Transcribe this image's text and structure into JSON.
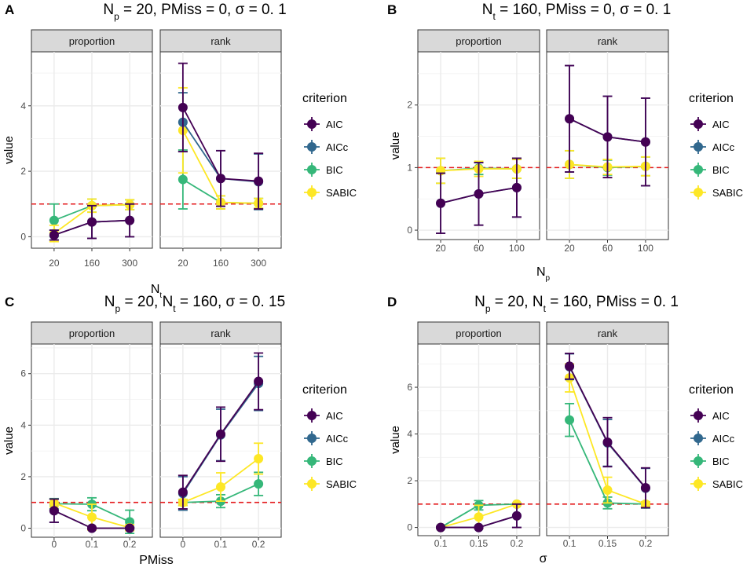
{
  "colors": {
    "AIC": "#440154",
    "AICc": "#31688E",
    "BIC": "#35B779",
    "SABIC": "#FDE725",
    "reference_line": "#E41A1C",
    "panel_background": "#FFFFFF",
    "strip_background": "#D9D9D9",
    "grid": "#EBEBEB"
  },
  "legend": {
    "title": "criterion",
    "items": [
      "AIC",
      "AICc",
      "BIC",
      "SABIC"
    ]
  },
  "chart_data": [
    {
      "panel_letter": "A",
      "type": "line",
      "title": "N_p = 20, PMiss = 0, σ = 0.1",
      "title_parts": [
        {
          "t": "N"
        },
        {
          "t": "p",
          "sub": true
        },
        {
          "t": " = 20, PMiss = 0, σ = 0. 1"
        }
      ],
      "xlabel_parts": [
        {
          "t": "N"
        },
        {
          "t": "t",
          "sub": true
        }
      ],
      "ylabel": "value",
      "ylim": [
        -0.35,
        5.65
      ],
      "yticks": [
        0,
        2,
        4
      ],
      "ytick_labels": [
        "0",
        "2",
        "4"
      ],
      "categories": [
        "20",
        "160",
        "300"
      ],
      "reference_line_y": 1,
      "facets": [
        {
          "label": "proportion",
          "series": [
            {
              "name": "AIC",
              "values": [
                0.05,
                0.45,
                0.5
              ],
              "err": [
                0.15,
                0.5,
                0.5
              ]
            },
            {
              "name": "AICc",
              "values": [
                0.05,
                0.45,
                0.5
              ],
              "err": [
                0.15,
                0.5,
                0.5
              ]
            },
            {
              "name": "BIC",
              "values": [
                0.5,
                0.95,
                0.98
              ],
              "err": [
                0.5,
                0.2,
                0.15
              ]
            },
            {
              "name": "SABIC",
              "values": [
                0.1,
                0.95,
                0.98
              ],
              "err": [
                0.25,
                0.2,
                0.15
              ]
            }
          ]
        },
        {
          "label": "rank",
          "series": [
            {
              "name": "AIC",
              "values": [
                3.95,
                1.78,
                1.7
              ],
              "err": [
                1.35,
                0.85,
                0.85
              ]
            },
            {
              "name": "AICc",
              "values": [
                3.5,
                1.78,
                1.68
              ],
              "err": [
                0.9,
                0.85,
                0.85
              ]
            },
            {
              "name": "BIC",
              "values": [
                1.75,
                1.05,
                1.02
              ],
              "err": [
                0.9,
                0.2,
                0.15
              ]
            },
            {
              "name": "SABIC",
              "values": [
                3.25,
                1.05,
                1.02
              ],
              "err": [
                1.3,
                0.2,
                0.15
              ]
            }
          ]
        }
      ]
    },
    {
      "panel_letter": "B",
      "type": "line",
      "title": "N_t = 160, PMiss = 0, σ = 0.1",
      "title_parts": [
        {
          "t": "N"
        },
        {
          "t": "t",
          "sub": true
        },
        {
          "t": " = 160, PMiss = 0, σ = 0. 1"
        }
      ],
      "xlabel_parts": [
        {
          "t": "N"
        },
        {
          "t": "p",
          "sub": true
        }
      ],
      "ylabel": "value",
      "ylim": [
        -0.15,
        2.85
      ],
      "yticks": [
        0,
        1,
        2
      ],
      "ytick_labels": [
        "0",
        "1",
        "2"
      ],
      "categories": [
        "20",
        "60",
        "100"
      ],
      "reference_line_y": 1,
      "facets": [
        {
          "label": "proportion",
          "series": [
            {
              "name": "AIC",
              "values": [
                0.43,
                0.58,
                0.68
              ],
              "err": [
                0.48,
                0.5,
                0.47
              ]
            },
            {
              "name": "AICc",
              "values": [
                0.43,
                0.58,
                0.68
              ],
              "err": [
                0.48,
                0.5,
                0.47
              ]
            },
            {
              "name": "BIC",
              "values": [
                0.95,
                0.99,
                0.98
              ],
              "err": [
                0.2,
                0.1,
                0.15
              ]
            },
            {
              "name": "SABIC",
              "values": [
                0.95,
                0.98,
                0.98
              ],
              "err": [
                0.2,
                0.12,
                0.15
              ]
            }
          ]
        },
        {
          "label": "rank",
          "series": [
            {
              "name": "AIC",
              "values": [
                1.78,
                1.49,
                1.41
              ],
              "err": [
                0.85,
                0.65,
                0.7
              ]
            },
            {
              "name": "AICc",
              "values": [
                1.78,
                1.49,
                1.41
              ],
              "err": [
                0.85,
                0.65,
                0.7
              ]
            },
            {
              "name": "BIC",
              "values": [
                1.05,
                1.0,
                1.02
              ],
              "err": [
                0.22,
                0.12,
                0.15
              ]
            },
            {
              "name": "SABIC",
              "values": [
                1.05,
                1.01,
                1.02
              ],
              "err": [
                0.22,
                0.12,
                0.15
              ]
            }
          ]
        }
      ]
    },
    {
      "panel_letter": "C",
      "type": "line",
      "title": "N_p = 20, N_t = 160, σ = 0.15",
      "title_parts": [
        {
          "t": "N"
        },
        {
          "t": "p",
          "sub": true
        },
        {
          "t": " = 20, N"
        },
        {
          "t": "t",
          "sub": true
        },
        {
          "t": " = 160, σ = 0. 15"
        }
      ],
      "xlabel_parts": [
        {
          "t": "PMiss"
        }
      ],
      "ylabel": "value",
      "ylim": [
        -0.35,
        7.15
      ],
      "yticks": [
        0,
        2,
        4,
        6
      ],
      "ytick_labels": [
        "0",
        "2",
        "4",
        "6"
      ],
      "categories": [
        "0",
        "0.1",
        "0.2"
      ],
      "reference_line_y": 1,
      "facets": [
        {
          "label": "proportion",
          "series": [
            {
              "name": "AIC",
              "values": [
                0.68,
                0.0,
                0.0
              ],
              "err": [
                0.45,
                0.03,
                0.03
              ]
            },
            {
              "name": "AICc",
              "values": [
                0.68,
                0.0,
                0.0
              ],
              "err": [
                0.45,
                0.03,
                0.03
              ]
            },
            {
              "name": "BIC",
              "values": [
                0.95,
                0.93,
                0.25
              ],
              "err": [
                0.2,
                0.25,
                0.45
              ]
            },
            {
              "name": "SABIC",
              "values": [
                0.98,
                0.43,
                0.02
              ],
              "err": [
                0.15,
                0.5,
                0.12
              ]
            }
          ]
        },
        {
          "label": "rank",
          "series": [
            {
              "name": "AIC",
              "values": [
                1.4,
                3.65,
                5.7
              ],
              "err": [
                0.65,
                1.05,
                1.1
              ]
            },
            {
              "name": "AICc",
              "values": [
                1.35,
                3.62,
                5.62
              ],
              "err": [
                0.65,
                1.0,
                1.05
              ]
            },
            {
              "name": "BIC",
              "values": [
                1.0,
                1.05,
                1.72
              ],
              "err": [
                0.12,
                0.25,
                0.45
              ]
            },
            {
              "name": "SABIC",
              "values": [
                1.0,
                1.6,
                2.7
              ],
              "err": [
                0.12,
                0.55,
                0.6
              ]
            }
          ]
        }
      ]
    },
    {
      "panel_letter": "D",
      "type": "line",
      "title": "N_p = 20, N_t = 160, PMiss = 0.1",
      "title_parts": [
        {
          "t": "N"
        },
        {
          "t": "p",
          "sub": true
        },
        {
          "t": " = 20, N"
        },
        {
          "t": "t",
          "sub": true
        },
        {
          "t": " = 160, PMiss = 0. 1"
        }
      ],
      "xlabel_parts": [
        {
          "t": "σ"
        }
      ],
      "ylabel": "value",
      "ylim": [
        -0.35,
        7.85
      ],
      "yticks": [
        0,
        2,
        4,
        6
      ],
      "ytick_labels": [
        "0",
        "2",
        "4",
        "6"
      ],
      "categories": [
        "0.1",
        "0.15",
        "0.2"
      ],
      "reference_line_y": 1,
      "facets": [
        {
          "label": "proportion",
          "series": [
            {
              "name": "AIC",
              "values": [
                0.0,
                0.0,
                0.5
              ],
              "err": [
                0.03,
                0.03,
                0.5
              ]
            },
            {
              "name": "AICc",
              "values": [
                0.0,
                0.0,
                0.5
              ],
              "err": [
                0.03,
                0.03,
                0.5
              ]
            },
            {
              "name": "BIC",
              "values": [
                0.0,
                0.95,
                1.0
              ],
              "err": [
                0.03,
                0.2,
                0.05
              ]
            },
            {
              "name": "SABIC",
              "values": [
                0.0,
                0.45,
                1.0
              ],
              "err": [
                0.03,
                0.5,
                0.05
              ]
            }
          ]
        },
        {
          "label": "rank",
          "series": [
            {
              "name": "AIC",
              "values": [
                6.9,
                3.65,
                1.7
              ],
              "err": [
                0.55,
                1.05,
                0.85
              ]
            },
            {
              "name": "AICc",
              "values": [
                6.88,
                3.62,
                1.68
              ],
              "err": [
                0.55,
                1.0,
                0.85
              ]
            },
            {
              "name": "BIC",
              "values": [
                4.6,
                1.05,
                1.0
              ],
              "err": [
                0.7,
                0.25,
                0.1
              ]
            },
            {
              "name": "SABIC",
              "values": [
                6.4,
                1.6,
                1.0
              ],
              "err": [
                0.6,
                0.55,
                0.1
              ]
            }
          ]
        }
      ]
    }
  ]
}
